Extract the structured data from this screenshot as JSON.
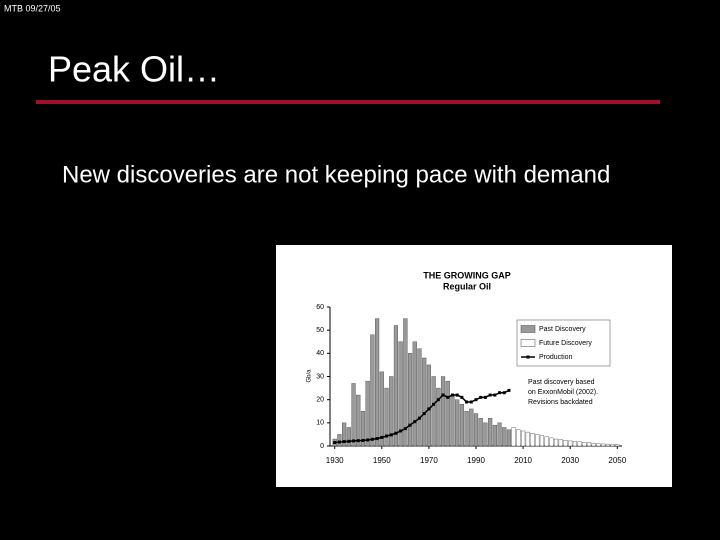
{
  "header": {
    "stamp": "MTB 09/27/05",
    "title": "Peak Oil…"
  },
  "subtitle": "New discoveries are not keeping pace with demand",
  "chart_data": {
    "type": "bar",
    "title": "THE GROWING GAP",
    "subtitle": "Regular Oil",
    "ylabel": "Gb/a",
    "x": [
      1930,
      1932,
      1934,
      1936,
      1938,
      1940,
      1942,
      1944,
      1946,
      1948,
      1950,
      1952,
      1954,
      1956,
      1958,
      1960,
      1962,
      1964,
      1966,
      1968,
      1970,
      1972,
      1974,
      1976,
      1978,
      1980,
      1982,
      1984,
      1986,
      1988,
      1990,
      1992,
      1994,
      1996,
      1998,
      2000,
      2002,
      2004,
      2006,
      2008,
      2010,
      2012,
      2014,
      2016,
      2018,
      2020,
      2022,
      2024,
      2026,
      2028,
      2030,
      2032,
      2034,
      2036,
      2038,
      2040,
      2042,
      2044,
      2046,
      2048,
      2050
    ],
    "series": [
      {
        "name": "Past Discovery",
        "color": "#999999",
        "values": [
          3,
          5,
          10,
          8,
          27,
          22,
          15,
          28,
          48,
          55,
          32,
          25,
          30,
          52,
          45,
          55,
          40,
          45,
          42,
          38,
          35,
          30,
          25,
          30,
          28,
          22,
          20,
          18,
          15,
          16,
          14,
          12,
          10,
          12,
          9,
          10,
          8,
          7,
          null,
          null,
          null,
          null,
          null,
          null,
          null,
          null,
          null,
          null,
          null,
          null,
          null,
          null,
          null,
          null,
          null,
          null,
          null,
          null,
          null,
          null,
          null
        ]
      },
      {
        "name": "Future Discovery",
        "color": "#ffffff",
        "values": [
          null,
          null,
          null,
          null,
          null,
          null,
          null,
          null,
          null,
          null,
          null,
          null,
          null,
          null,
          null,
          null,
          null,
          null,
          null,
          null,
          null,
          null,
          null,
          null,
          null,
          null,
          null,
          null,
          null,
          null,
          null,
          null,
          null,
          null,
          null,
          null,
          null,
          null,
          8,
          7,
          6.5,
          6,
          5.5,
          5,
          4.5,
          4,
          3.5,
          3,
          2.8,
          2.5,
          2.2,
          2,
          1.8,
          1.6,
          1.4,
          1.2,
          1,
          0.9,
          0.8,
          0.7,
          0.6
        ]
      },
      {
        "name": "Production",
        "color": "#000000",
        "type": "line",
        "values": [
          1.5,
          1.7,
          1.9,
          2,
          2.2,
          2.3,
          2.4,
          2.6,
          2.9,
          3.2,
          3.7,
          4.3,
          4.8,
          5.5,
          6.5,
          7.5,
          9,
          10.5,
          12,
          14,
          16,
          18,
          20,
          22,
          21,
          22,
          22,
          21,
          19,
          19,
          20,
          21,
          21,
          22,
          22,
          23,
          23,
          24,
          null,
          null,
          null,
          null,
          null,
          null,
          null,
          null,
          null,
          null,
          null,
          null,
          null,
          null,
          null,
          null,
          null,
          null,
          null,
          null,
          null,
          null,
          null
        ]
      }
    ],
    "xlim": [
      1928,
      2052
    ],
    "ylim": [
      0,
      60
    ],
    "xticks": [
      1930,
      1950,
      1970,
      1990,
      2010,
      2030,
      2050
    ],
    "yticks": [
      0,
      10,
      20,
      30,
      40,
      50,
      60
    ],
    "annotation": [
      "Past discovery based",
      "on ExxonMobil (2002).",
      "Revisions backdated"
    ]
  }
}
